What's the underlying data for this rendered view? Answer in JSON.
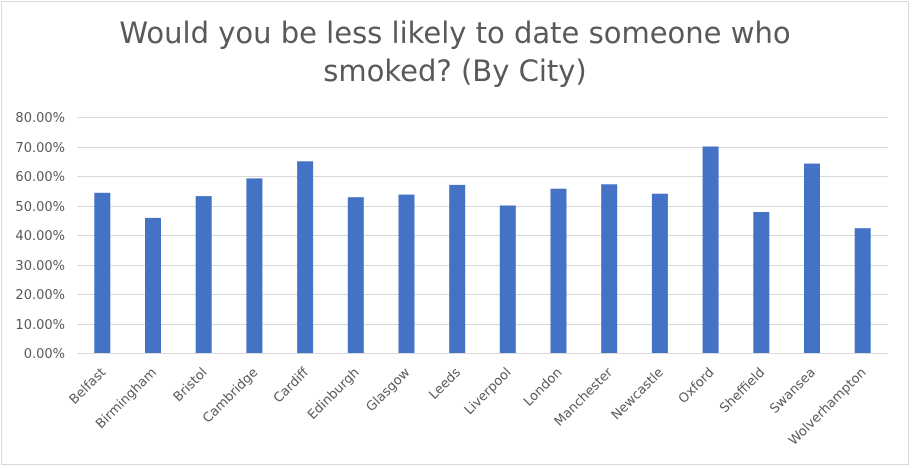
{
  "chart_data": {
    "type": "bar",
    "title_lines": [
      "Would you be less likely to date someone who",
      "smoked? (By City)"
    ],
    "xlabel": "",
    "ylabel": "",
    "categories": [
      "Belfast",
      "Birmingham",
      "Bristol",
      "Cambridge",
      "Cardiff",
      "Edinburgh",
      "Glasgow",
      "Leeds",
      "Liverpool",
      "London",
      "Manchester",
      "Newcastle",
      "Oxford",
      "Sheffield",
      "Swansea",
      "Wolverhampton"
    ],
    "values": [
      0.543,
      0.458,
      0.532,
      0.592,
      0.65,
      0.528,
      0.537,
      0.57,
      0.5,
      0.557,
      0.572,
      0.54,
      0.7,
      0.478,
      0.642,
      0.423
    ],
    "ylim": [
      0,
      0.8
    ],
    "yticks": [
      "0.00%",
      "10.00%",
      "20.00%",
      "30.00%",
      "40.00%",
      "50.00%",
      "60.00%",
      "70.00%",
      "80.00%"
    ],
    "grid": true,
    "legend": "none",
    "bar_color": "#4472c4",
    "grid_color": "#d9d9d9"
  }
}
